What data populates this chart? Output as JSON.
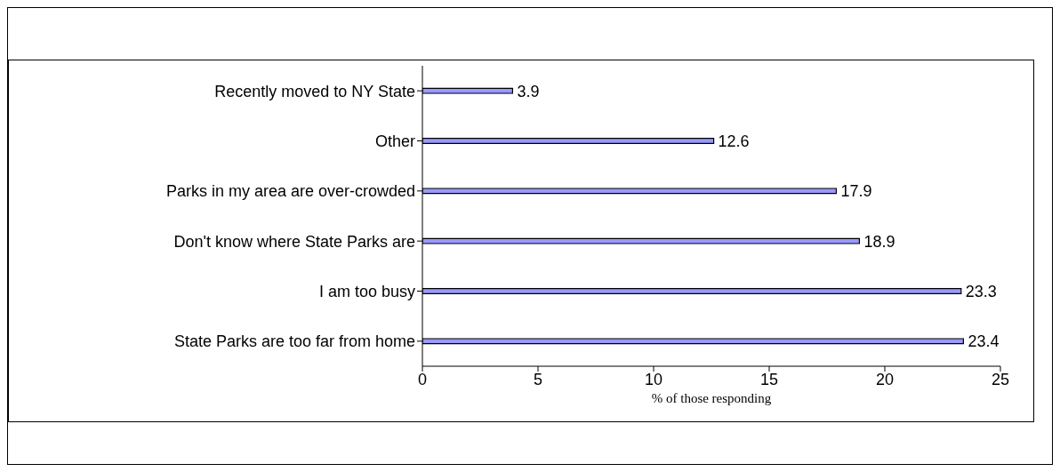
{
  "chart_data": {
    "type": "bar",
    "orientation": "horizontal",
    "xlabel": "% of those responding",
    "categories": [
      "Recently moved to NY State",
      "Other",
      "Parks in my area are over-crowded",
      "Don't know where State Parks are",
      "I am too busy",
      "State Parks are too far from home"
    ],
    "values": [
      3.9,
      12.6,
      17.9,
      18.9,
      23.3,
      23.4
    ],
    "color": "#9999ff",
    "data_labels": true,
    "xlim": [
      0,
      25
    ],
    "xticks": [
      0,
      5,
      10,
      15,
      20,
      25
    ],
    "grid": false,
    "legend": false
  }
}
